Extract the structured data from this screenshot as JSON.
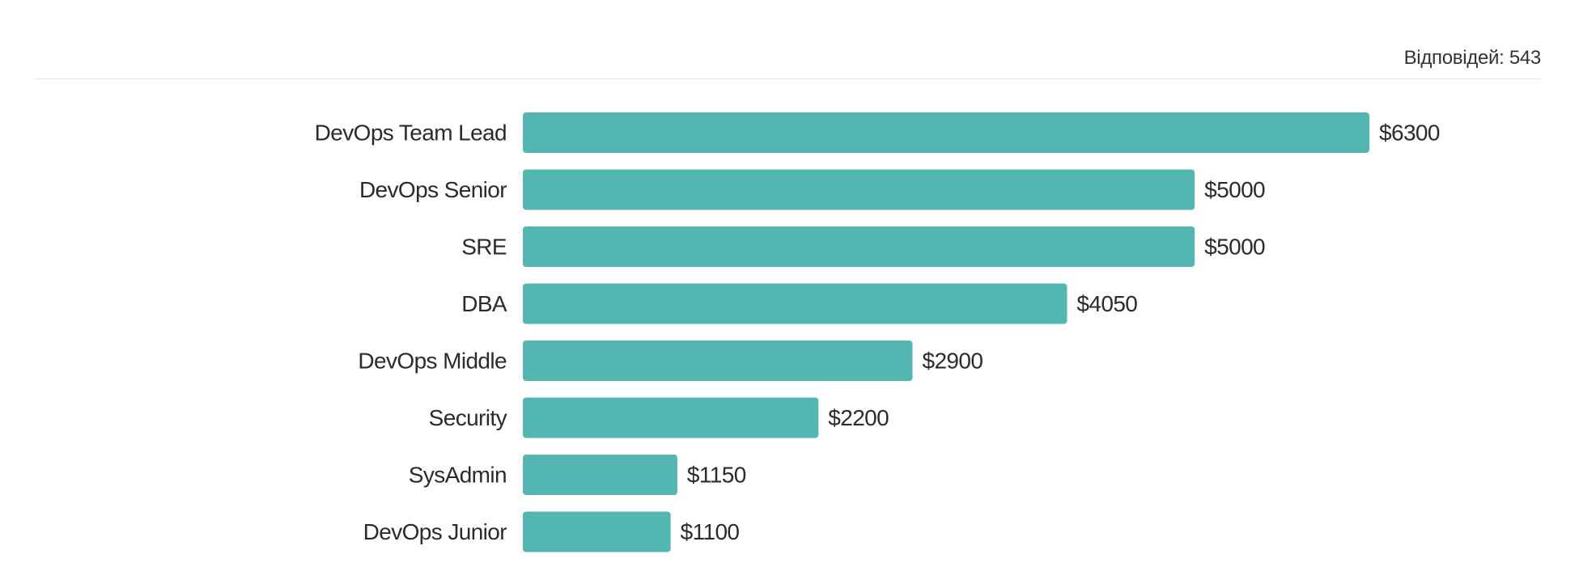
{
  "header": {
    "responses_label": "Відповідей: 543"
  },
  "colors": {
    "bar": "#53b6b0",
    "divider": "#e6e6e6",
    "text": "#2b2b2b"
  },
  "chart_data": {
    "type": "bar",
    "orientation": "horizontal",
    "categories": [
      "DevOps Team Lead",
      "DevOps Senior",
      "SRE",
      "DBA",
      "DevOps Middle",
      "Security",
      "SysAdmin",
      "DevOps Junior"
    ],
    "values": [
      6300,
      5000,
      5000,
      4050,
      2900,
      2200,
      1150,
      1100
    ],
    "value_labels": [
      "$6300",
      "$5000",
      "$5000",
      "$4050",
      "$2900",
      "$2200",
      "$1150",
      "$1100"
    ],
    "xlim": [
      0,
      6300
    ],
    "grid": false,
    "legend": "none"
  }
}
